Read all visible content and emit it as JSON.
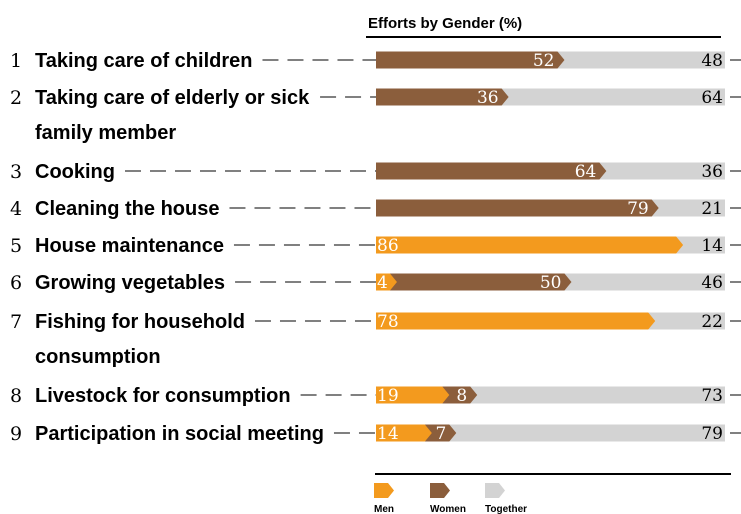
{
  "chart_data": {
    "type": "bar",
    "stacked": true,
    "title": "Efforts by Gender (%)",
    "categories": [
      {
        "num": "1",
        "lines": [
          "Taking care of children"
        ]
      },
      {
        "num": "2",
        "lines": [
          "Taking care of elderly or sick",
          "family member"
        ]
      },
      {
        "num": "3",
        "lines": [
          "Cooking"
        ]
      },
      {
        "num": "4",
        "lines": [
          "Cleaning the house"
        ]
      },
      {
        "num": "5",
        "lines": [
          "House maintenance"
        ]
      },
      {
        "num": "6",
        "lines": [
          "Growing vegetables"
        ]
      },
      {
        "num": "7",
        "lines": [
          "Fishing for household",
          "consumption"
        ]
      },
      {
        "num": "8",
        "lines": [
          "Livestock for consumption"
        ]
      },
      {
        "num": "9",
        "lines": [
          "Participation in social meeting"
        ]
      }
    ],
    "series": [
      {
        "name": "Men",
        "color": "#F39A1E",
        "values": [
          0,
          0,
          0,
          0,
          86,
          4,
          78,
          19,
          14
        ]
      },
      {
        "name": "Women",
        "color": "#8B5E3C",
        "values": [
          52,
          36,
          64,
          79,
          0,
          50,
          0,
          8,
          7
        ]
      },
      {
        "name": "Together",
        "color": "#D3D3D3",
        "values": [
          48,
          64,
          36,
          21,
          14,
          46,
          22,
          73,
          79
        ]
      }
    ],
    "xlim": [
      0,
      100
    ],
    "legend_position": "bottom"
  }
}
